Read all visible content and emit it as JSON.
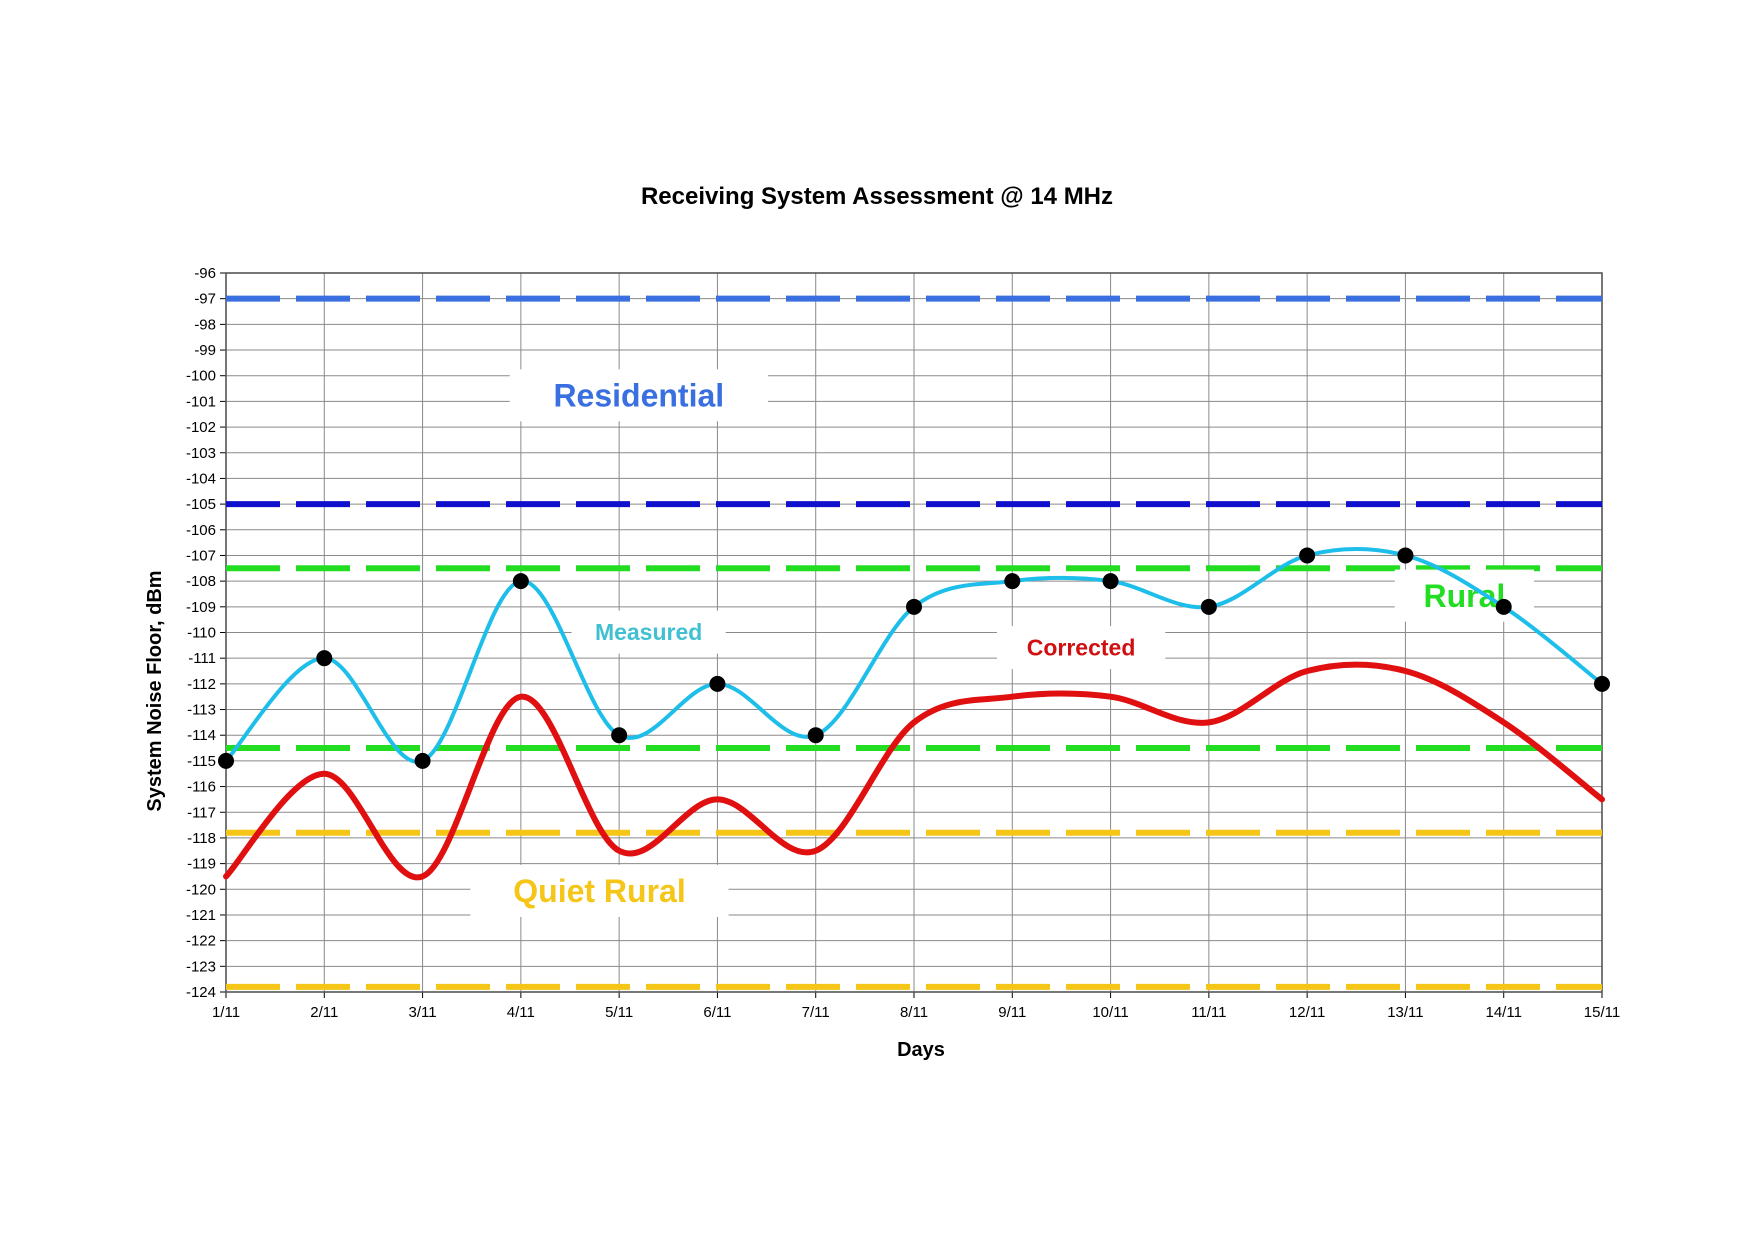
{
  "chart_data": {
    "type": "line",
    "title": "Receiving System Assessment @ 14  MHz",
    "xlabel": "Days",
    "ylabel": "System Noise Floor, dBm",
    "ylim": [
      -124,
      -96
    ],
    "y_ticks": [
      "-96",
      "-97",
      "-98",
      "-99",
      "-100",
      "-101",
      "-102",
      "-103",
      "-104",
      "-105",
      "-106",
      "-107",
      "-108",
      "-109",
      "-110",
      "-111",
      "-112",
      "-113",
      "-114",
      "-115",
      "-116",
      "-117",
      "-118",
      "-119",
      "-120",
      "-121",
      "-122",
      "-123",
      "-124"
    ],
    "categories": [
      "1/11",
      "2/11",
      "3/11",
      "4/11",
      "5/11",
      "6/11",
      "7/11",
      "8/11",
      "9/11",
      "10/11",
      "11/11",
      "12/11",
      "13/11",
      "14/11",
      "15/11"
    ],
    "grid": true,
    "legend": "none",
    "series": [
      {
        "name": "Measured",
        "color": "#1EBEEA",
        "marker": "circle",
        "values": [
          -115,
          -111,
          -115,
          -108,
          -114,
          -112,
          -114,
          -109,
          -108,
          -108,
          -109,
          -107,
          -107,
          -109,
          -112
        ]
      },
      {
        "name": "Corrected",
        "color": "#E01010",
        "marker": "none",
        "values": [
          -119.5,
          -115.5,
          -119.5,
          -112.5,
          -118.5,
          -116.5,
          -118.5,
          -113.5,
          -112.5,
          -112.5,
          -113.5,
          -111.5,
          -111.5,
          -113.5,
          -116.5
        ]
      }
    ],
    "reference_lines": [
      {
        "value": -97,
        "color": "#3A6FE0"
      },
      {
        "value": -105,
        "color": "#1010CC"
      },
      {
        "value": -107.5,
        "color": "#22DD22"
      },
      {
        "value": -114.5,
        "color": "#22DD22"
      },
      {
        "value": -117.8,
        "color": "#F5C518"
      },
      {
        "value": -123.8,
        "color": "#F5C518"
      }
    ],
    "annotations": [
      {
        "text": "Residential",
        "color": "#3A6FE0",
        "x": 4.2,
        "y": -101.2
      },
      {
        "text": "Rural",
        "color": "#22DD22",
        "x": 12.6,
        "y": -109
      },
      {
        "text": "Quiet Rural",
        "color": "#F5C518",
        "x": 3.8,
        "y": -120.5
      },
      {
        "text": "Measured",
        "color": "#40C0D0",
        "x": 4.3,
        "y": -110.3
      },
      {
        "text": "Corrected",
        "color": "#D01010",
        "x": 8.7,
        "y": -110.9
      }
    ]
  }
}
